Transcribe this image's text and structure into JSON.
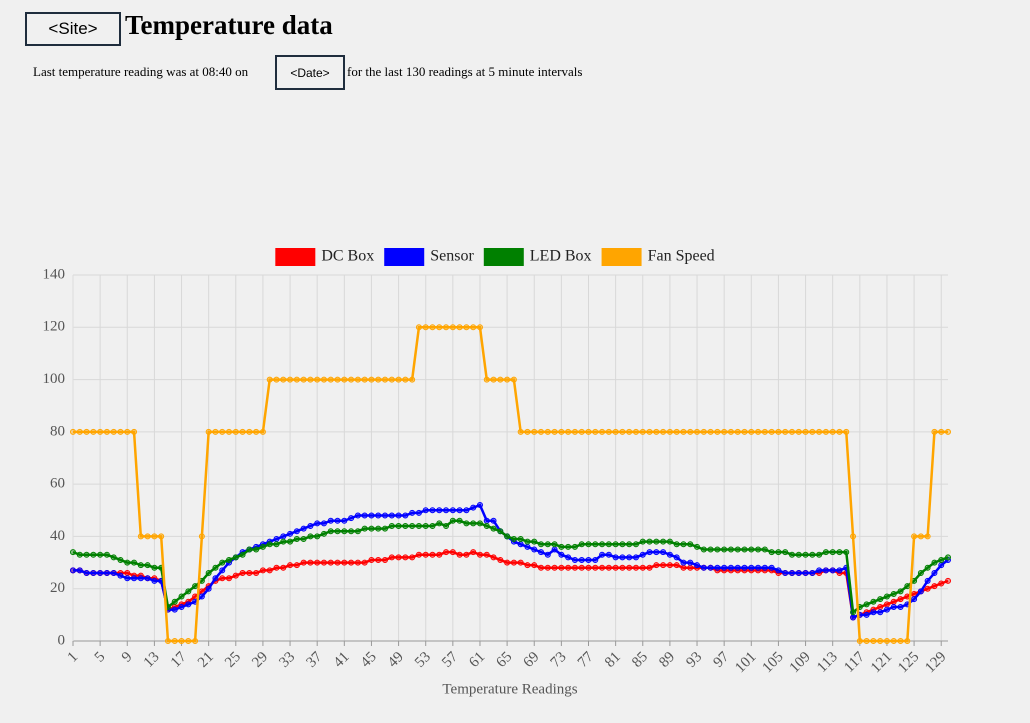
{
  "header": {
    "site": "<Site>",
    "title": "Temperature data"
  },
  "info": {
    "prefix": "Last temperature reading was at 08:40 on",
    "date": "<Date>",
    "suffix": "for the last 130 readings at 5 minute intervals"
  },
  "chart_data": {
    "type": "line",
    "xlabel": "Temperature Readings",
    "x": [
      1,
      2,
      3,
      4,
      5,
      6,
      7,
      8,
      9,
      10,
      11,
      12,
      13,
      14,
      15,
      16,
      17,
      18,
      19,
      20,
      21,
      22,
      23,
      24,
      25,
      26,
      27,
      28,
      29,
      30,
      31,
      32,
      33,
      34,
      35,
      36,
      37,
      38,
      39,
      40,
      41,
      42,
      43,
      44,
      45,
      46,
      47,
      48,
      49,
      50,
      51,
      52,
      53,
      54,
      55,
      56,
      57,
      58,
      59,
      60,
      61,
      62,
      63,
      64,
      65,
      66,
      67,
      68,
      69,
      70,
      71,
      72,
      73,
      74,
      75,
      76,
      77,
      78,
      79,
      80,
      81,
      82,
      83,
      84,
      85,
      86,
      87,
      88,
      89,
      90,
      91,
      92,
      93,
      94,
      95,
      96,
      97,
      98,
      99,
      100,
      101,
      102,
      103,
      104,
      105,
      106,
      107,
      108,
      109,
      110,
      111,
      112,
      113,
      114,
      115,
      116,
      117,
      118,
      119,
      120,
      121,
      122,
      123,
      124,
      125,
      126,
      127,
      128,
      129,
      130
    ],
    "xlim": [
      1,
      130
    ],
    "xticks": [
      1,
      5,
      9,
      13,
      17,
      21,
      25,
      29,
      33,
      37,
      41,
      45,
      49,
      53,
      57,
      61,
      65,
      69,
      73,
      77,
      81,
      85,
      89,
      93,
      97,
      101,
      105,
      109,
      113,
      117,
      121,
      125,
      129
    ],
    "ylim": [
      0,
      140
    ],
    "yticks": [
      0,
      20,
      40,
      60,
      80,
      100,
      120,
      140
    ],
    "grid": true,
    "series": [
      {
        "name": "DC Box",
        "color": "#ff0000",
        "values": [
          27,
          27,
          26,
          26,
          26,
          26,
          26,
          26,
          26,
          25,
          25,
          24,
          24,
          23,
          12,
          13,
          14,
          15,
          17,
          19,
          21,
          23,
          24,
          24,
          25,
          26,
          26,
          26,
          27,
          27,
          28,
          28,
          29,
          29,
          30,
          30,
          30,
          30,
          30,
          30,
          30,
          30,
          30,
          30,
          31,
          31,
          31,
          32,
          32,
          32,
          32,
          33,
          33,
          33,
          33,
          34,
          34,
          33,
          33,
          34,
          33,
          33,
          32,
          31,
          30,
          30,
          30,
          29,
          29,
          28,
          28,
          28,
          28,
          28,
          28,
          28,
          28,
          28,
          28,
          28,
          28,
          28,
          28,
          28,
          28,
          28,
          29,
          29,
          29,
          29,
          28,
          28,
          28,
          28,
          28,
          27,
          27,
          27,
          27,
          27,
          27,
          27,
          27,
          27,
          26,
          26,
          26,
          26,
          26,
          26,
          26,
          27,
          27,
          26,
          26,
          9,
          10,
          11,
          12,
          13,
          14,
          15,
          16,
          17,
          18,
          19,
          20,
          21,
          22,
          23
        ]
      },
      {
        "name": "Sensor",
        "color": "#0000ff",
        "values": [
          27,
          27,
          26,
          26,
          26,
          26,
          26,
          25,
          24,
          24,
          24,
          24,
          23,
          23,
          12,
          12,
          13,
          14,
          15,
          17,
          20,
          24,
          27,
          30,
          32,
          34,
          35,
          36,
          37,
          38,
          39,
          40,
          41,
          42,
          43,
          44,
          45,
          45,
          46,
          46,
          46,
          47,
          48,
          48,
          48,
          48,
          48,
          48,
          48,
          48,
          49,
          49,
          50,
          50,
          50,
          50,
          50,
          50,
          50,
          51,
          52,
          46,
          46,
          42,
          40,
          38,
          37,
          36,
          35,
          34,
          33,
          35,
          33,
          32,
          31,
          31,
          31,
          31,
          33,
          33,
          32,
          32,
          32,
          32,
          33,
          34,
          34,
          34,
          33,
          32,
          30,
          30,
          29,
          28,
          28,
          28,
          28,
          28,
          28,
          28,
          28,
          28,
          28,
          28,
          27,
          26,
          26,
          26,
          26,
          26,
          27,
          27,
          27,
          27,
          28,
          9,
          10,
          10,
          11,
          11,
          12,
          13,
          13,
          14,
          16,
          19,
          23,
          26,
          29,
          31
        ]
      },
      {
        "name": "LED Box",
        "color": "#008000",
        "values": [
          34,
          33,
          33,
          33,
          33,
          33,
          32,
          31,
          30,
          30,
          29,
          29,
          28,
          28,
          13,
          15,
          17,
          19,
          21,
          23,
          26,
          28,
          30,
          31,
          32,
          33,
          35,
          35,
          36,
          37,
          37,
          38,
          38,
          39,
          39,
          40,
          40,
          41,
          42,
          42,
          42,
          42,
          42,
          43,
          43,
          43,
          43,
          44,
          44,
          44,
          44,
          44,
          44,
          44,
          45,
          44,
          46,
          46,
          45,
          45,
          45,
          44,
          43,
          42,
          40,
          39,
          39,
          38,
          38,
          37,
          37,
          37,
          36,
          36,
          36,
          37,
          37,
          37,
          37,
          37,
          37,
          37,
          37,
          37,
          38,
          38,
          38,
          38,
          38,
          37,
          37,
          37,
          36,
          35,
          35,
          35,
          35,
          35,
          35,
          35,
          35,
          35,
          35,
          34,
          34,
          34,
          33,
          33,
          33,
          33,
          33,
          34,
          34,
          34,
          34,
          11,
          13,
          14,
          15,
          16,
          17,
          18,
          19,
          21,
          23,
          26,
          28,
          30,
          31,
          32
        ]
      },
      {
        "name": "Fan Speed",
        "color": "#ffa500",
        "values": [
          80,
          80,
          80,
          80,
          80,
          80,
          80,
          80,
          80,
          80,
          40,
          40,
          40,
          40,
          0,
          0,
          0,
          0,
          0,
          40,
          80,
          80,
          80,
          80,
          80,
          80,
          80,
          80,
          80,
          100,
          100,
          100,
          100,
          100,
          100,
          100,
          100,
          100,
          100,
          100,
          100,
          100,
          100,
          100,
          100,
          100,
          100,
          100,
          100,
          100,
          100,
          120,
          120,
          120,
          120,
          120,
          120,
          120,
          120,
          120,
          120,
          100,
          100,
          100,
          100,
          100,
          80,
          80,
          80,
          80,
          80,
          80,
          80,
          80,
          80,
          80,
          80,
          80,
          80,
          80,
          80,
          80,
          80,
          80,
          80,
          80,
          80,
          80,
          80,
          80,
          80,
          80,
          80,
          80,
          80,
          80,
          80,
          80,
          80,
          80,
          80,
          80,
          80,
          80,
          80,
          80,
          80,
          80,
          80,
          80,
          80,
          80,
          80,
          80,
          80,
          40,
          0,
          0,
          0,
          0,
          0,
          0,
          0,
          0,
          40,
          40,
          40,
          80,
          80,
          80
        ]
      }
    ]
  }
}
